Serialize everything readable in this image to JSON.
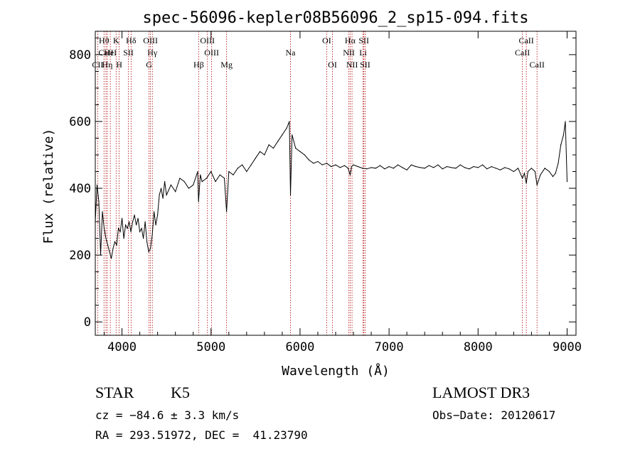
{
  "chart_data": {
    "type": "line",
    "title": "spec-56096-kepler08B56096_2_sp15-094.fits",
    "xlabel": "Wavelength (Å)",
    "ylabel": "Flux (relative)",
    "xlim": [
      3700,
      9100
    ],
    "ylim": [
      -40,
      870
    ],
    "xticks": [
      4000,
      5000,
      6000,
      7000,
      8000,
      9000
    ],
    "yticks": [
      0,
      200,
      400,
      600,
      800
    ],
    "xtick_labels": [
      "4000",
      "5000",
      "6000",
      "7000",
      "8000",
      "9000"
    ],
    "ytick_labels": [
      "0",
      "200",
      "400",
      "600",
      "800"
    ],
    "series": [
      {
        "name": "spectrum",
        "color": "#000000",
        "x": [
          3700,
          3720,
          3740,
          3760,
          3780,
          3800,
          3820,
          3840,
          3860,
          3880,
          3900,
          3920,
          3940,
          3960,
          3980,
          4000,
          4020,
          4040,
          4060,
          4080,
          4100,
          4120,
          4140,
          4160,
          4180,
          4200,
          4220,
          4240,
          4260,
          4280,
          4300,
          4320,
          4340,
          4360,
          4380,
          4400,
          4420,
          4440,
          4460,
          4480,
          4500,
          4550,
          4600,
          4650,
          4700,
          4750,
          4800,
          4850,
          4860,
          4880,
          4900,
          4950,
          5000,
          5050,
          5100,
          5150,
          5175,
          5200,
          5250,
          5300,
          5350,
          5400,
          5450,
          5500,
          5550,
          5600,
          5650,
          5700,
          5750,
          5800,
          5850,
          5880,
          5893,
          5910,
          5950,
          6000,
          6050,
          6100,
          6150,
          6200,
          6250,
          6300,
          6350,
          6400,
          6450,
          6500,
          6540,
          6563,
          6580,
          6600,
          6650,
          6700,
          6750,
          6800,
          6850,
          6900,
          6950,
          7000,
          7050,
          7100,
          7150,
          7200,
          7250,
          7300,
          7350,
          7400,
          7450,
          7500,
          7550,
          7600,
          7650,
          7700,
          7750,
          7800,
          7850,
          7900,
          7950,
          8000,
          8050,
          8100,
          8150,
          8200,
          8250,
          8300,
          8350,
          8400,
          8450,
          8498,
          8520,
          8542,
          8560,
          8600,
          8640,
          8662,
          8700,
          8750,
          8800,
          8840,
          8870,
          8900,
          8930,
          8960,
          8980,
          9000
        ],
        "values": [
          300,
          410,
          360,
          200,
          330,
          280,
          250,
          230,
          210,
          190,
          220,
          240,
          230,
          280,
          270,
          310,
          250,
          290,
          280,
          300,
          270,
          300,
          320,
          290,
          310,
          270,
          280,
          250,
          300,
          240,
          210,
          220,
          260,
          330,
          290,
          320,
          380,
          400,
          370,
          420,
          380,
          410,
          390,
          430,
          420,
          400,
          410,
          450,
          360,
          440,
          420,
          430,
          450,
          420,
          440,
          430,
          330,
          450,
          440,
          460,
          470,
          450,
          470,
          490,
          510,
          500,
          530,
          520,
          540,
          560,
          580,
          600,
          380,
          560,
          520,
          510,
          500,
          485,
          475,
          480,
          470,
          475,
          465,
          470,
          462,
          468,
          460,
          440,
          465,
          470,
          465,
          460,
          458,
          462,
          460,
          468,
          458,
          465,
          460,
          470,
          462,
          455,
          470,
          465,
          462,
          460,
          468,
          462,
          470,
          458,
          465,
          462,
          460,
          470,
          462,
          458,
          465,
          462,
          470,
          458,
          465,
          460,
          455,
          462,
          458,
          450,
          460,
          430,
          445,
          415,
          450,
          460,
          450,
          410,
          440,
          460,
          450,
          435,
          445,
          475,
          530,
          560,
          600,
          420
        ]
      }
    ],
    "lines": [
      {
        "label": "CII",
        "wavelength": 3727,
        "row": 3
      },
      {
        "label": "Hθ",
        "wavelength": 3798,
        "row": 1
      },
      {
        "label": "CaII",
        "wavelength": 3820,
        "row": 2
      },
      {
        "label": "Hη",
        "wavelength": 3835,
        "row": 3
      },
      {
        "label": "HeI",
        "wavelength": 3869,
        "row": 2
      },
      {
        "label": "K",
        "wavelength": 3934,
        "row": 1
      },
      {
        "label": "H",
        "wavelength": 3968,
        "row": 3
      },
      {
        "label": "SII",
        "wavelength": 4072,
        "row": 2
      },
      {
        "label": "Hδ",
        "wavelength": 4102,
        "row": 1
      },
      {
        "label": "OIII",
        "wavelength": 4320,
        "row": 1
      },
      {
        "label": "Hγ",
        "wavelength": 4341,
        "row": 2
      },
      {
        "label": "G",
        "wavelength": 4304,
        "row": 3
      },
      {
        "label": "OIII",
        "wavelength": 4960,
        "row": 1
      },
      {
        "label": "OIII",
        "wavelength": 5007,
        "row": 2
      },
      {
        "label": "Hβ",
        "wavelength": 4861,
        "row": 3
      },
      {
        "label": "Mg",
        "wavelength": 5175,
        "row": 3
      },
      {
        "label": "Na",
        "wavelength": 5893,
        "row": 2
      },
      {
        "label": "OI",
        "wavelength": 6300,
        "row": 1
      },
      {
        "label": "OI",
        "wavelength": 6364,
        "row": 3
      },
      {
        "label": "Hα",
        "wavelength": 6563,
        "row": 1
      },
      {
        "label": "NII",
        "wavelength": 6548,
        "row": 2
      },
      {
        "label": "NII",
        "wavelength": 6584,
        "row": 3
      },
      {
        "label": "SII",
        "wavelength": 6717,
        "row": 1
      },
      {
        "label": "Li",
        "wavelength": 6708,
        "row": 2
      },
      {
        "label": "SII",
        "wavelength": 6731,
        "row": 3
      },
      {
        "label": "CaII",
        "wavelength": 8498,
        "row": 2
      },
      {
        "label": "CaII",
        "wavelength": 8542,
        "row": 1
      },
      {
        "label": "CaII",
        "wavelength": 8662,
        "row": 3
      }
    ]
  },
  "info": {
    "class": "STAR",
    "subclass": "K5",
    "survey": "LAMOST DR3",
    "cz": "cz = −84.6 ± 3.3 km/s",
    "obs_date": "Obs−Date: 20120617",
    "coords": "RA = 293.51972, DEC =  41.23790"
  },
  "colors": {
    "spectrum": "#000000",
    "line_markers": "#b00000",
    "axes": "#000000"
  }
}
